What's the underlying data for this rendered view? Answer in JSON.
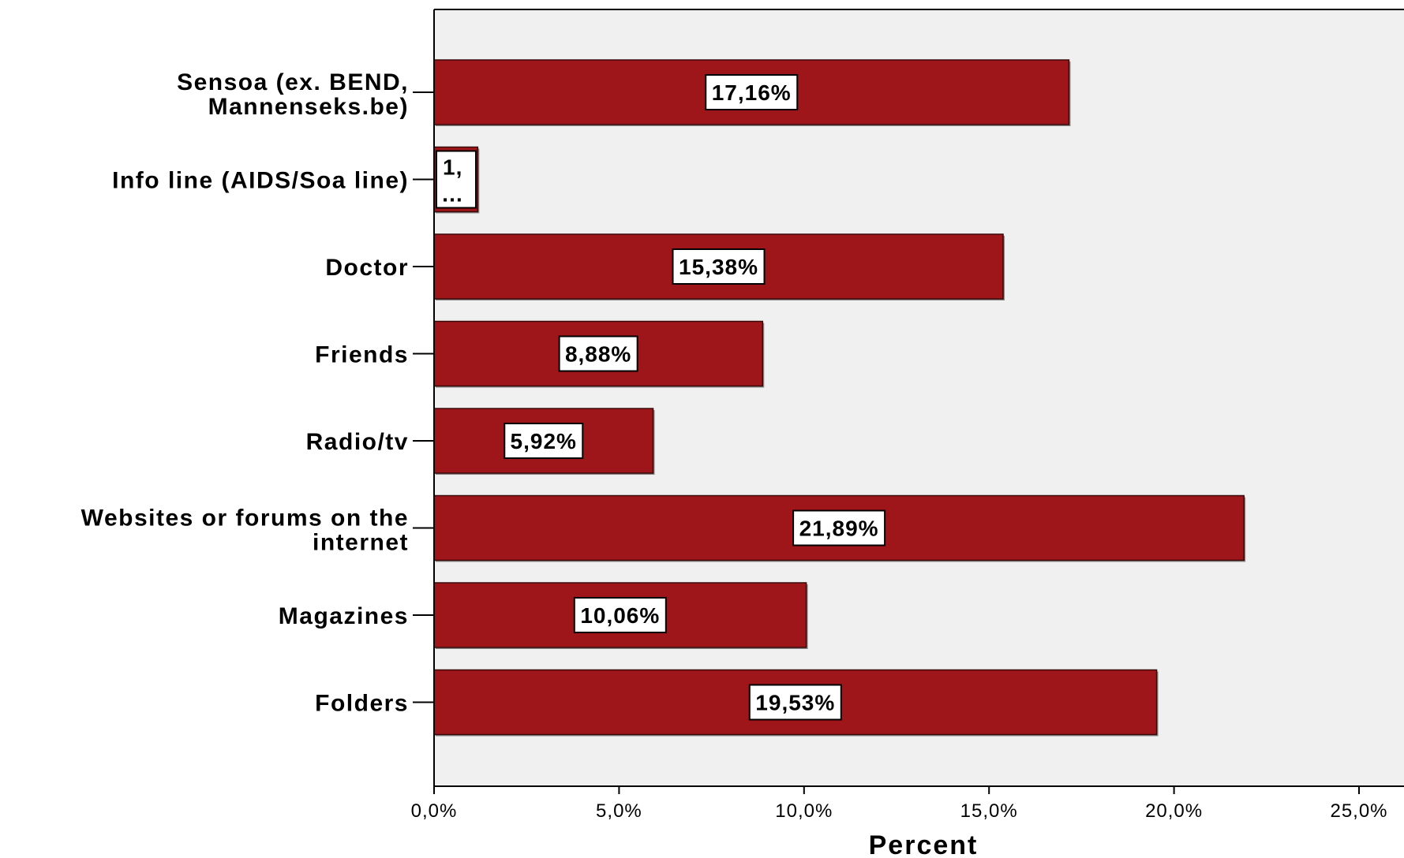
{
  "chart_data": {
    "type": "bar",
    "orientation": "horizontal",
    "categories": [
      [
        "Sensoa (ex. BEND,",
        "Mannenseks.be)"
      ],
      [
        "Info line (AIDS/Soa line)"
      ],
      [
        "Doctor"
      ],
      [
        "Friends"
      ],
      [
        "Radio/tv"
      ],
      [
        "Websites or forums on the",
        "internet"
      ],
      [
        "Magazines"
      ],
      [
        "Folders"
      ]
    ],
    "values": [
      17.16,
      1.18,
      15.38,
      8.88,
      5.92,
      21.89,
      10.06,
      19.53
    ],
    "data_labels": [
      "17,16%",
      "1,…",
      "15,38%",
      "8,88%",
      "5,92%",
      "21,89%",
      "10,06%",
      "19,53%"
    ],
    "xlim": [
      0,
      25
    ],
    "x_ticks": [
      0,
      5,
      10,
      15,
      20,
      25
    ],
    "x_tick_labels": [
      "0,0%",
      "5,0%",
      "10,0%",
      "15,0%",
      "20,0%",
      "25,0%"
    ],
    "xlabel": "Percent",
    "ylabel": "",
    "title": "",
    "bar_color": "#9e1619",
    "plot_background": "#f0f0f0"
  }
}
